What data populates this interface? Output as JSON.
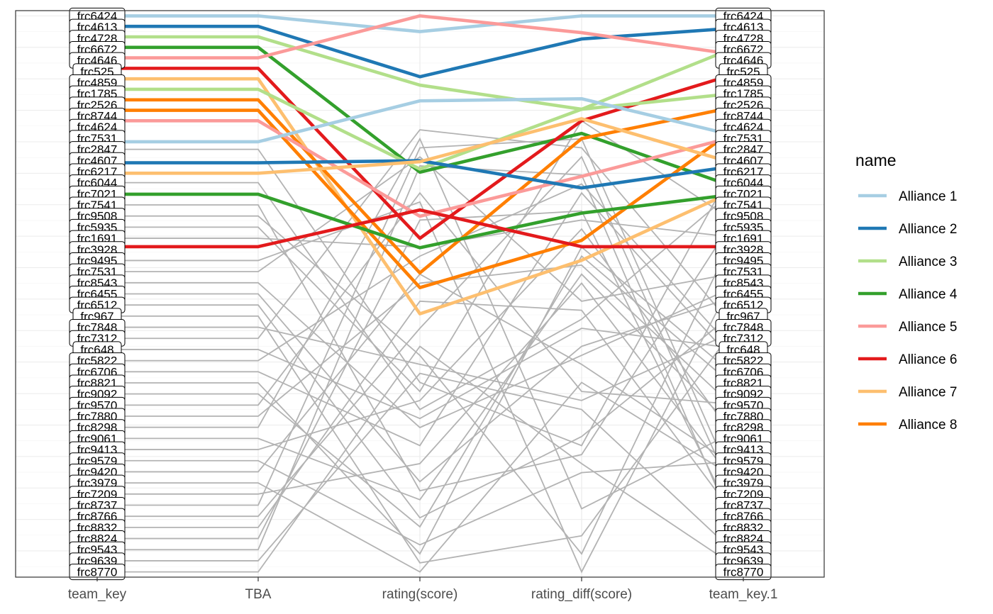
{
  "chart_data": {
    "type": "line",
    "subtype": "parallel-coordinates",
    "x": [
      "team_key",
      "TBA",
      "rating(score)",
      "rating_diff(score)",
      "team_key.1"
    ],
    "yrange": [
      -0.5,
      53.5
    ],
    "grid": true,
    "legend_position": "right",
    "legend_title": "name",
    "default_line_color": "#b3b3b3",
    "alliances": [
      {
        "name": "Alliance 1",
        "color": "#a6cee3"
      },
      {
        "name": "Alliance 2",
        "color": "#1f78b4"
      },
      {
        "name": "Alliance 3",
        "color": "#b2df8a"
      },
      {
        "name": "Alliance 4",
        "color": "#33a02c"
      },
      {
        "name": "Alliance 5",
        "color": "#fb9a99"
      },
      {
        "name": "Alliance 6",
        "color": "#e31a1c"
      },
      {
        "name": "Alliance 7",
        "color": "#fdbf6f"
      },
      {
        "name": "Alliance 8",
        "color": "#ff7f00"
      }
    ],
    "series": [
      {
        "name": "frc6424",
        "alliance": 0,
        "values": [
          0,
          0,
          1.5,
          0,
          0
        ]
      },
      {
        "name": "frc4613",
        "alliance": 1,
        "values": [
          1,
          1,
          5.8,
          2.2,
          1.1
        ]
      },
      {
        "name": "frc4728",
        "alliance": 2,
        "values": [
          2,
          2,
          6.6,
          8.9,
          2.7
        ]
      },
      {
        "name": "frc6672",
        "alliance": 3,
        "values": [
          3,
          3,
          14.9,
          11.2,
          16.6
        ]
      },
      {
        "name": "frc4646",
        "alliance": 4,
        "values": [
          4,
          4,
          0,
          1.6,
          3.8
        ]
      },
      {
        "name": "frc525",
        "alliance": 5,
        "values": [
          5,
          5,
          21.2,
          10.0,
          5.3
        ]
      },
      {
        "name": "frc4859",
        "alliance": 6,
        "values": [
          6,
          6,
          28.4,
          23.3,
          16.3
        ]
      },
      {
        "name": "frc1785",
        "alliance": 2,
        "values": [
          7,
          7,
          14.6,
          8.9,
          7.3
        ]
      },
      {
        "name": "frc2526",
        "alliance": 7,
        "values": [
          8,
          8,
          24.5,
          11.7,
          8.5
        ]
      },
      {
        "name": "frc8744",
        "alliance": 7,
        "values": [
          9,
          9,
          25.9,
          21.4,
          10.2
        ]
      },
      {
        "name": "frc4624",
        "alliance": 4,
        "values": [
          10,
          10,
          19.1,
          15.3,
          11.3
        ]
      },
      {
        "name": "frc7531",
        "alliance": 0,
        "values": [
          12,
          12,
          8.1,
          7.9,
          11.6
        ]
      },
      {
        "name": "frc4607",
        "alliance": 1,
        "values": [
          14,
          14,
          13.8,
          16.4,
          14.2
        ]
      },
      {
        "name": "frc6217",
        "alliance": 6,
        "values": [
          15,
          15,
          13.9,
          9.8,
          14.3
        ]
      },
      {
        "name": "frc7021",
        "alliance": 3,
        "values": [
          17,
          17,
          22.1,
          18.8,
          16.9
        ]
      },
      {
        "name": "frc3928",
        "alliance": 5,
        "values": [
          22,
          22,
          18.5,
          22.0,
          22.0
        ]
      }
    ],
    "teams_left": [
      "frc6424",
      "frc4613",
      "frc4728",
      "frc6672",
      "frc4646",
      "frc525",
      "frc4859",
      "frc1785",
      "frc2526",
      "frc8744",
      "frc4624",
      "frc7531",
      "frc2847",
      "frc4607",
      "frc6217",
      "frc6044",
      "frc7021",
      "frc7541",
      "frc9508",
      "frc5935",
      "frc1691",
      "frc3928",
      "frc9495",
      "frc7531",
      "frc8543",
      "frc6455",
      "frc6512",
      "frc967",
      "frc7848",
      "frc7312",
      "frc648",
      "frc5822",
      "frc6706",
      "frc8821",
      "frc9092",
      "frc9570",
      "frc7880",
      "frc8298",
      "frc9061",
      "frc9413",
      "frc9579",
      "frc9420",
      "frc3979",
      "frc7209",
      "frc8737",
      "frc8766",
      "frc8832",
      "frc8824",
      "frc9543",
      "frc9639",
      "frc8770"
    ],
    "teams_right": [
      "frc6424",
      "frc4613",
      "frc4728",
      "frc6672",
      "frc4646",
      "frc525",
      "frc4859",
      "frc1785",
      "frc2526",
      "frc8744",
      "frc4624",
      "frc7531",
      "frc2847",
      "frc4607",
      "frc6217",
      "frc6044",
      "frc7021",
      "frc7541",
      "frc9508",
      "frc5935",
      "frc1691",
      "frc3928",
      "frc9495",
      "frc7531",
      "frc8543",
      "frc6455",
      "frc6512",
      "frc967",
      "frc7848",
      "frc7312",
      "frc648",
      "frc5822",
      "frc6706",
      "frc8821",
      "frc9092",
      "frc9570",
      "frc7880",
      "frc8298",
      "frc9061",
      "frc9413",
      "frc9579",
      "frc9420",
      "frc3979",
      "frc7209",
      "frc8737",
      "frc8766",
      "frc8832",
      "frc8824",
      "frc9543",
      "frc9639",
      "frc8770"
    ]
  }
}
